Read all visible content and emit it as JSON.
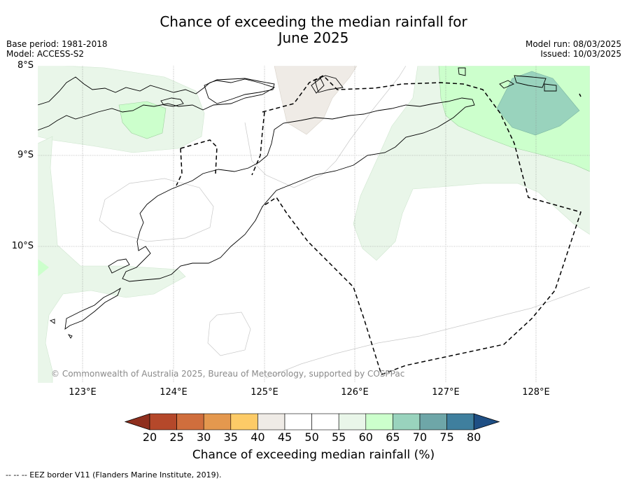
{
  "title_line1": "Chance of exceeding the median rainfall for",
  "title_line2": "June 2025",
  "base_period": "Base period: 1981-2018",
  "model": "Model: ACCESS-S2",
  "model_run": "Model run: 08/03/2025",
  "issued": "Issued: 10/03/2025",
  "lat_labels": [
    "8°S",
    "9°S",
    "10°S"
  ],
  "lon_labels": [
    "123°E",
    "124°E",
    "125°E",
    "126°E",
    "127°E",
    "128°E"
  ],
  "copyright": "© Commonwealth of Australia 2025, Bureau of Meteorology, supported by COSPPac",
  "colorbar": {
    "ticks": [
      "20",
      "25",
      "30",
      "35",
      "40",
      "45",
      "50",
      "55",
      "60",
      "65",
      "70",
      "75",
      "80"
    ],
    "colors": [
      "#8f2f1e",
      "#b5482a",
      "#d06e3d",
      "#e4984e",
      "#fdcb67",
      "#efebe6",
      "#ffffff",
      "#ffffff",
      "#e9f6e9",
      "#ccffcc",
      "#99d3bd",
      "#6ea6a8",
      "#3f7f9e",
      "#1f4f84"
    ],
    "label": "Chance of exceeding median rainfall (%)"
  },
  "footer": "--  --  -- EEZ border V11 (Flanders Marine Institute, 2019)."
}
